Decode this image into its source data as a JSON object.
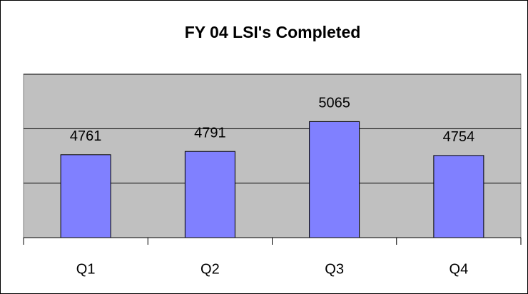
{
  "chart_data": {
    "type": "bar",
    "title": "FY 04 LSI's Completed",
    "categories": [
      "Q1",
      "Q2",
      "Q3",
      "Q4"
    ],
    "values": [
      4761,
      4791,
      5065,
      4754
    ],
    "color": "#8080ff",
    "ylim": [
      4000,
      5500
    ],
    "yticks": [
      4000,
      4500,
      5000,
      5500
    ],
    "grid": true
  }
}
